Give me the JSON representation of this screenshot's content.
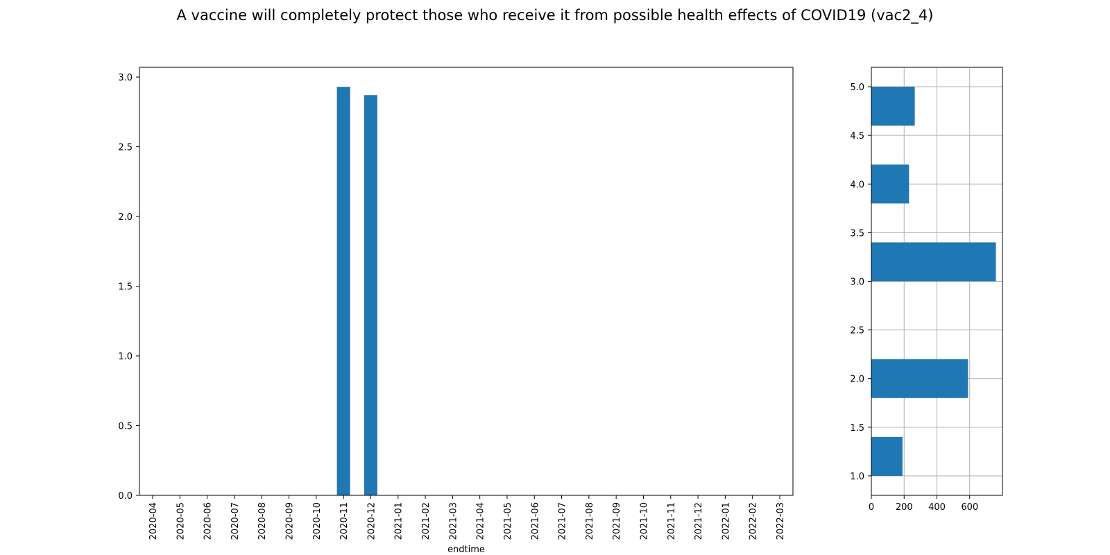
{
  "title": "A vaccine will completely protect those who receive it from possible health effects of COVID19 (vac2_4)",
  "colors": {
    "bar": "#1f77b4",
    "grid": "#b0b0b0",
    "axis": "#000000"
  },
  "chart_data": [
    {
      "type": "bar",
      "xlabel": "endtime",
      "ylabel": "",
      "ylim": [
        0,
        3.07
      ],
      "yticks": [
        "0.0",
        "0.5",
        "1.0",
        "1.5",
        "2.0",
        "2.5",
        "3.0"
      ],
      "grid": false,
      "categories": [
        "2020-04",
        "2020-05",
        "2020-06",
        "2020-07",
        "2020-08",
        "2020-09",
        "2020-10",
        "2020-11",
        "2020-12",
        "2021-01",
        "2021-02",
        "2021-03",
        "2021-04",
        "2021-05",
        "2021-06",
        "2021-07",
        "2021-08",
        "2021-09",
        "2021-10",
        "2021-11",
        "2021-12",
        "2022-01",
        "2022-02",
        "2022-03"
      ],
      "values": [
        0,
        0,
        0,
        0,
        0,
        0,
        0,
        2.93,
        2.87,
        0,
        0,
        0,
        0,
        0,
        0,
        0,
        0,
        0,
        0,
        0,
        0,
        0,
        0,
        0
      ]
    },
    {
      "type": "bar",
      "orientation": "horizontal",
      "xlabel": "",
      "ylabel": "",
      "xlim": [
        0,
        800
      ],
      "xticks": [
        "0",
        "200",
        "400",
        "600"
      ],
      "ylim": [
        0.8,
        5.2
      ],
      "yticks": [
        "1.0",
        "1.5",
        "2.0",
        "2.5",
        "3.0",
        "3.5",
        "4.0",
        "4.5",
        "5.0"
      ],
      "grid": true,
      "bins": [
        {
          "start": 1.0,
          "end": 1.4,
          "value": 190
        },
        {
          "start": 1.8,
          "end": 2.2,
          "value": 590
        },
        {
          "start": 3.0,
          "end": 3.4,
          "value": 760
        },
        {
          "start": 3.8,
          "end": 4.2,
          "value": 230
        },
        {
          "start": 4.6,
          "end": 5.0,
          "value": 265
        }
      ]
    }
  ]
}
